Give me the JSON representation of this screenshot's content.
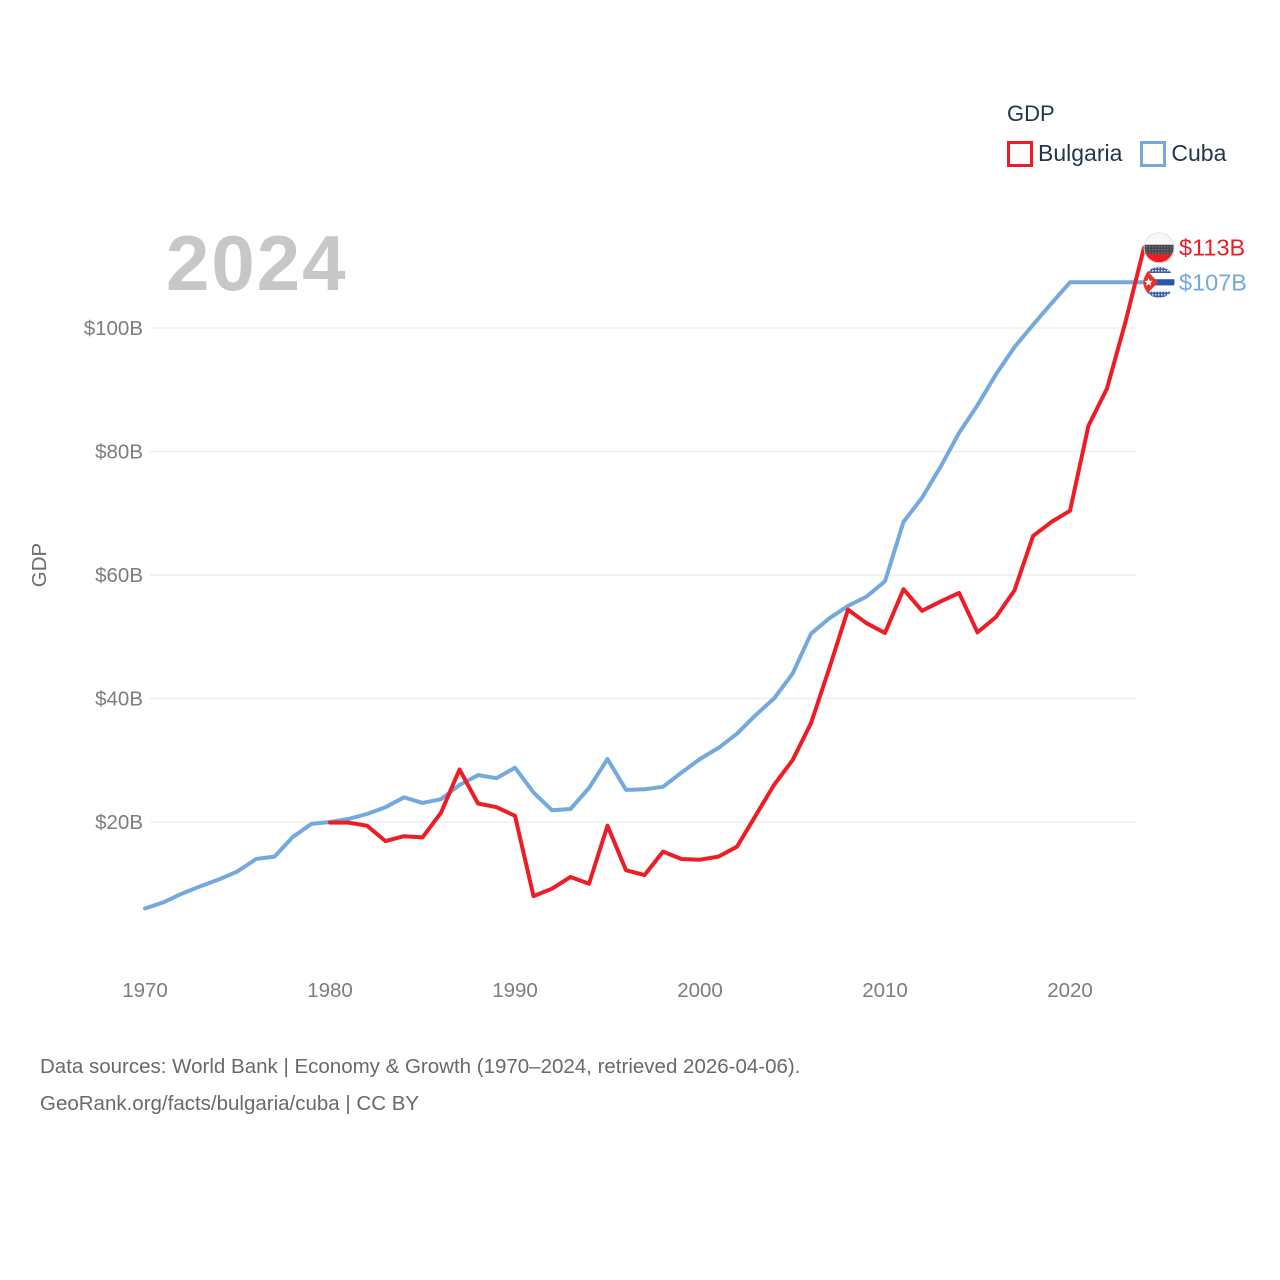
{
  "page": {
    "background": "#ffffff"
  },
  "legend": {
    "title": "GDP",
    "items": [
      {
        "label": "Bulgaria",
        "color": "#ee1c25"
      },
      {
        "label": "Cuba",
        "color": "#73a9dc"
      }
    ]
  },
  "watermark": {
    "text": "2024"
  },
  "end_labels": [
    {
      "series": "Bulgaria",
      "text": "$113B",
      "flag": "bulgaria-flag",
      "color": "#ee1c25"
    },
    {
      "series": "Cuba",
      "text": "$107B",
      "flag": "cuba-flag",
      "color": "#73a9dc"
    }
  ],
  "footer": {
    "line1": "Data sources: World Bank | Economy & Growth (1970–2024, retrieved 2026-04-06).",
    "line2": "GeoRank.org/facts/bulgaria/cuba | CC BY"
  },
  "chart_data": {
    "type": "line",
    "title": "GDP",
    "xlabel": "",
    "ylabel": "GDP",
    "grid": "horizontal",
    "legend_position": "top-right",
    "xlim": [
      1970,
      2024
    ],
    "ylim": [
      0,
      120
    ],
    "x_ticks": [
      1970,
      1980,
      1990,
      2000,
      2010,
      2020
    ],
    "y_ticks": [
      {
        "value": 20,
        "label": "$20B"
      },
      {
        "value": 40,
        "label": "$40B"
      },
      {
        "value": 60,
        "label": "$60B"
      },
      {
        "value": 80,
        "label": "$80B"
      },
      {
        "value": 100,
        "label": "$100B"
      }
    ],
    "x": [
      1970,
      1971,
      1972,
      1973,
      1974,
      1975,
      1976,
      1977,
      1978,
      1979,
      1980,
      1981,
      1982,
      1983,
      1984,
      1985,
      1986,
      1987,
      1988,
      1989,
      1990,
      1991,
      1992,
      1993,
      1994,
      1995,
      1996,
      1997,
      1998,
      1999,
      2000,
      2001,
      2002,
      2003,
      2004,
      2005,
      2006,
      2007,
      2008,
      2009,
      2010,
      2011,
      2012,
      2013,
      2014,
      2015,
      2016,
      2017,
      2018,
      2019,
      2020,
      2021,
      2022,
      2023,
      2024
    ],
    "series": [
      {
        "name": "Cuba",
        "color": "#73a9dc",
        "values": [
          6.0,
          7.0,
          8.4,
          9.6,
          10.7,
          12.0,
          14.0,
          14.4,
          17.6,
          19.7,
          20.0,
          20.5,
          21.3,
          22.4,
          24.0,
          23.1,
          23.7,
          26.0,
          27.6,
          27.1,
          28.8,
          24.8,
          21.9,
          22.1,
          25.5,
          30.2,
          25.2,
          25.3,
          25.7,
          28.0,
          30.2,
          32.0,
          34.3,
          37.3,
          40.0,
          44.0,
          50.5,
          53.0,
          55.0,
          56.5,
          59.0,
          68.6,
          72.5,
          77.5,
          83.0,
          87.5,
          92.5,
          96.9,
          100.5,
          104.0,
          107.4,
          107.4,
          107.4,
          107.4,
          107.4
        ]
      },
      {
        "name": "Bulgaria",
        "color": "#ee1c25",
        "values": [
          null,
          null,
          null,
          null,
          null,
          null,
          null,
          null,
          null,
          null,
          19.9,
          19.9,
          19.4,
          16.9,
          17.7,
          17.5,
          21.5,
          28.5,
          23.0,
          22.4,
          21.0,
          8.0,
          9.2,
          11.1,
          10.0,
          19.4,
          12.2,
          11.4,
          15.2,
          14.0,
          13.9,
          14.4,
          16.0,
          21.0,
          26.0,
          30.0,
          36.0,
          45.0,
          54.4,
          52.2,
          50.6,
          57.7,
          54.2,
          55.7,
          57.1,
          50.7,
          53.2,
          57.5,
          66.3,
          68.6,
          70.4,
          84.2,
          90.2,
          101.0,
          113.0
        ]
      }
    ],
    "end_values": {
      "Bulgaria": 113.0,
      "Cuba": 107.4
    },
    "colors": {
      "grid": "#ececec",
      "tick_text": "#7d7d7d",
      "axis_title": "#6e6e6e",
      "watermark": "#c7c7c7",
      "legend_text": "#22364d",
      "footer_text": "#696969"
    }
  }
}
